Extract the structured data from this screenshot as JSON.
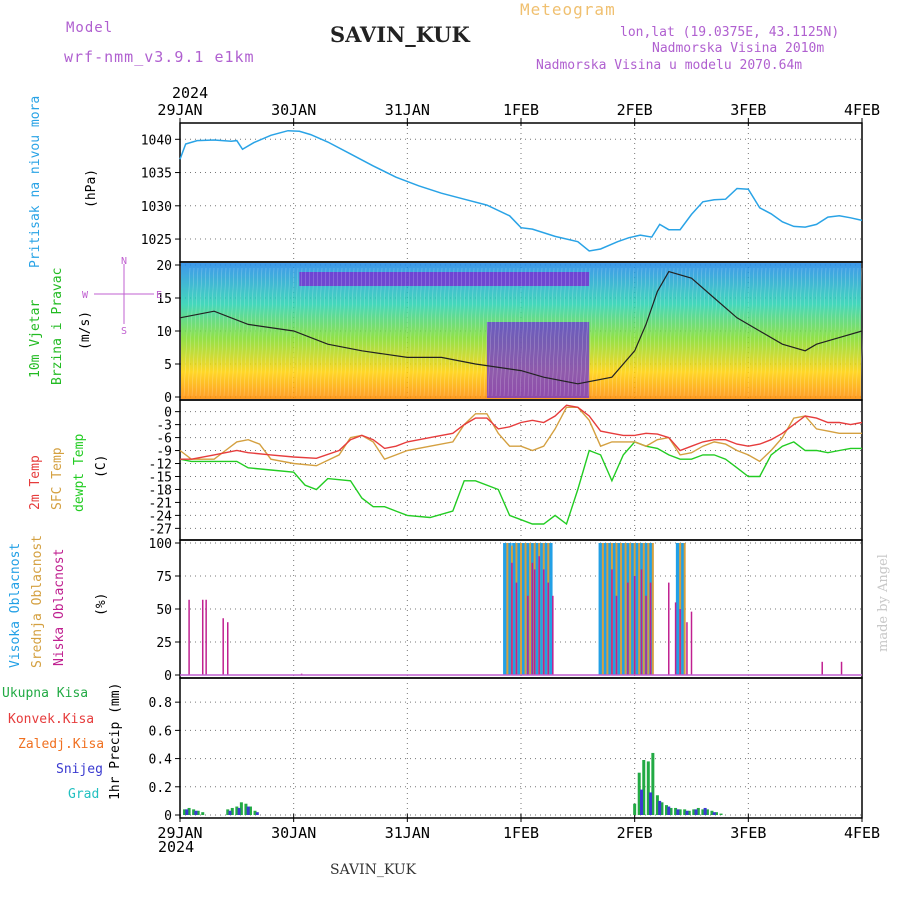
{
  "header": {
    "model_label": "Model",
    "model_name": "wrf-nmm_v3.9.1 e1km",
    "station": "SAVIN_KUK",
    "meteogram": "Meteogram",
    "lonlat": "lon,lat (19.0375E, 43.1125N)",
    "elevation": "Nadmorska Visina 2010m",
    "model_elevation": "Nadmorska Visina u modelu 2070.64m",
    "footer_station": "SAVIN_KUK",
    "credit": "made by Angel"
  },
  "colors": {
    "pressure": "#29a3e6",
    "temp2m": "#e63c3c",
    "sfc": "#d4a040",
    "dewpt": "#22cc22",
    "cloud_high": "#22a0e6",
    "cloud_mid": "#d4a040",
    "cloud_low": "#c02090",
    "precip_total": "#22aa44",
    "precip_snow": "#3a3ad0"
  },
  "chart_data": [
    {
      "type": "line",
      "panel": "pressure",
      "ylabel": [
        "Pritisak na nivou mora",
        "(hPa)"
      ],
      "yticks": [
        1025,
        1030,
        1035,
        1040
      ],
      "ylim": [
        1022,
        1042
      ],
      "xlim": [
        0,
        6
      ],
      "x_top_year": "2024",
      "x_bottom_year": "2024",
      "x_ticks": [
        "29JAN",
        "30JAN",
        "31JAN",
        "1FEB",
        "2FEB",
        "3FEB",
        "4FEB"
      ],
      "series": [
        {
          "x": [
            0,
            0.05,
            0.15,
            0.3,
            0.45,
            0.5,
            0.55,
            0.65,
            0.8,
            0.95,
            1.05,
            1.15,
            1.3,
            1.5,
            1.7,
            1.9,
            2.1,
            2.3,
            2.5,
            2.7,
            2.9,
            3.0,
            3.1,
            3.3,
            3.5,
            3.6,
            3.7,
            3.85,
            3.95,
            4.05,
            4.15,
            4.22,
            4.3,
            4.4,
            4.5,
            4.6,
            4.7,
            4.8,
            4.9,
            5.0,
            5.1,
            5.2,
            5.3,
            5.4,
            5.5,
            5.6,
            5.7,
            5.8,
            5.9,
            6.0
          ],
          "y": [
            1037,
            1039.3,
            1039.8,
            1039.9,
            1039.7,
            1039.8,
            1038.5,
            1039.5,
            1040.6,
            1041.3,
            1041.2,
            1040.7,
            1039.6,
            1037.8,
            1036,
            1034.3,
            1033,
            1031.9,
            1031,
            1030.1,
            1028.5,
            1026.7,
            1026.5,
            1025.4,
            1024.6,
            1023.2,
            1023.5,
            1024.6,
            1025.2,
            1025.6,
            1025.3,
            1027.2,
            1026.4,
            1026.4,
            1028.7,
            1030.6,
            1030.9,
            1031,
            1032.6,
            1032.5,
            1029.7,
            1028.8,
            1027.6,
            1026.9,
            1026.8,
            1027.2,
            1028.3,
            1028.5,
            1028.2,
            1027.8
          ]
        }
      ]
    },
    {
      "type": "line",
      "panel": "wind",
      "ylabel": [
        "10m Vjetar",
        "Brzina i Pravac",
        "(m/s)"
      ],
      "compass": [
        "N",
        "W",
        "E",
        "S"
      ],
      "yticks": [
        0,
        5,
        10,
        15,
        20
      ],
      "ylim": [
        0,
        20
      ],
      "xlim": [
        0,
        6
      ],
      "series": [
        {
          "name": "speed",
          "x": [
            0,
            0.3,
            0.6,
            1.0,
            1.3,
            1.6,
            2.0,
            2.3,
            2.6,
            3.0,
            3.2,
            3.5,
            3.8,
            4.0,
            4.1,
            4.2,
            4.3,
            4.5,
            4.7,
            4.9,
            5.1,
            5.3,
            5.5,
            5.6,
            5.8,
            6.0
          ],
          "y": [
            12,
            13,
            11,
            10,
            8,
            7,
            6,
            6,
            5,
            4,
            3,
            2,
            3,
            7,
            11,
            16,
            19,
            18,
            15,
            12,
            10,
            8,
            7,
            8,
            9,
            10
          ]
        }
      ]
    },
    {
      "type": "line",
      "panel": "temperature",
      "ylabel": [
        "2m Temp",
        "SFC Temp",
        "dewpt Temp",
        "(C)"
      ],
      "yticks": [
        0,
        -3,
        -6,
        -9,
        -12,
        -15,
        -18,
        -21,
        -24,
        -27
      ],
      "ylim": [
        -29,
        2
      ],
      "xlim": [
        0,
        6
      ],
      "series": [
        {
          "name": "2m Temp",
          "x": [
            0,
            0.1,
            0.3,
            0.5,
            0.6,
            0.8,
            1.0,
            1.2,
            1.4,
            1.5,
            1.6,
            1.7,
            1.8,
            1.9,
            2.0,
            2.2,
            2.4,
            2.5,
            2.6,
            2.7,
            2.8,
            2.9,
            3.0,
            3.1,
            3.2,
            3.3,
            3.4,
            3.5,
            3.6,
            3.7,
            3.8,
            3.9,
            4.0,
            4.1,
            4.2,
            4.3,
            4.4,
            4.5,
            4.6,
            4.7,
            4.8,
            4.9,
            5.0,
            5.1,
            5.2,
            5.3,
            5.4,
            5.5,
            5.6,
            5.7,
            5.8,
            5.9,
            6.0
          ],
          "y": [
            -11,
            -11,
            -10,
            -9,
            -9.5,
            -10,
            -10.5,
            -10.8,
            -9,
            -6.5,
            -5.5,
            -6.5,
            -8.5,
            -8,
            -7,
            -6,
            -5,
            -3,
            -1.5,
            -1.5,
            -4,
            -3.5,
            -2.5,
            -2,
            -2.5,
            -1,
            1.5,
            1,
            -1,
            -4.5,
            -5,
            -5.5,
            -5.5,
            -5,
            -5.2,
            -6,
            -9,
            -8,
            -7,
            -6.5,
            -6.5,
            -7.5,
            -8,
            -7.5,
            -6.5,
            -5,
            -3,
            -1,
            -1.5,
            -2.5,
            -2.5,
            -3,
            -2.5
          ]
        },
        {
          "name": "SFC Temp",
          "x": [
            0,
            0.1,
            0.3,
            0.4,
            0.5,
            0.6,
            0.7,
            0.8,
            1.0,
            1.2,
            1.4,
            1.5,
            1.6,
            1.7,
            1.8,
            1.9,
            2.0,
            2.2,
            2.4,
            2.5,
            2.6,
            2.7,
            2.8,
            2.9,
            3.0,
            3.1,
            3.2,
            3.3,
            3.4,
            3.5,
            3.6,
            3.7,
            3.8,
            3.9,
            4.0,
            4.1,
            4.2,
            4.3,
            4.4,
            4.5,
            4.6,
            4.7,
            4.8,
            4.9,
            5.0,
            5.1,
            5.2,
            5.3,
            5.4,
            5.5,
            5.6,
            5.7,
            5.8,
            5.9,
            6.0
          ],
          "y": [
            -9,
            -11,
            -11,
            -9,
            -7,
            -6.5,
            -7.5,
            -11,
            -12,
            -12.5,
            -10,
            -6,
            -5.5,
            -7,
            -11,
            -10,
            -9,
            -8,
            -7,
            -3,
            -0.5,
            -0.5,
            -5,
            -8,
            -8,
            -9,
            -8,
            -4,
            1,
            1,
            -2,
            -8,
            -7,
            -7,
            -7,
            -8,
            -6.5,
            -6,
            -10,
            -9.5,
            -8,
            -7,
            -7.5,
            -9,
            -10,
            -11.5,
            -9,
            -6,
            -1.5,
            -1,
            -4,
            -4.5,
            -5,
            -5,
            -5
          ]
        },
        {
          "name": "dewpt Temp",
          "x": [
            0,
            0.1,
            0.3,
            0.5,
            0.6,
            0.8,
            1.0,
            1.1,
            1.2,
            1.3,
            1.5,
            1.6,
            1.7,
            1.8,
            1.9,
            2.0,
            2.2,
            2.4,
            2.5,
            2.6,
            2.8,
            2.9,
            3.0,
            3.1,
            3.2,
            3.3,
            3.4,
            3.5,
            3.6,
            3.7,
            3.8,
            3.9,
            4.0,
            4.1,
            4.2,
            4.3,
            4.4,
            4.5,
            4.6,
            4.7,
            4.8,
            4.9,
            5.0,
            5.1,
            5.2,
            5.3,
            5.4,
            5.5,
            5.6,
            5.7,
            5.8,
            5.9,
            6.0
          ],
          "y": [
            -11,
            -11.5,
            -11.5,
            -11.5,
            -13,
            -13.5,
            -14,
            -17,
            -18,
            -15.5,
            -16,
            -20,
            -22,
            -22,
            -23,
            -24,
            -24.5,
            -23,
            -16,
            -16,
            -18,
            -24,
            -25,
            -26,
            -26,
            -24,
            -26,
            -18,
            -9,
            -10,
            -16,
            -10,
            -7,
            -8,
            -8.5,
            -10,
            -11,
            -11,
            -10,
            -10,
            -11,
            -13,
            -15,
            -15,
            -10,
            -8,
            -7,
            -9,
            -9,
            -9.5,
            -9,
            -8.5,
            -8.5
          ]
        }
      ]
    },
    {
      "type": "bar",
      "panel": "clouds",
      "ylabel": [
        "Visoka Oblacnost",
        "Srednja Oblacnost",
        "Niska Oblacnost",
        "(%)"
      ],
      "yticks": [
        0,
        25,
        50,
        75,
        100
      ],
      "ylim": [
        0,
        100
      ],
      "xlim": [
        0,
        6
      ],
      "series": [
        {
          "name": "Niska Oblacnost",
          "x": [
            0.08,
            0.2,
            0.23,
            0.38,
            0.42,
            1.07,
            5.65,
            5.82
          ],
          "y": [
            57,
            57,
            57,
            43,
            40,
            1,
            10,
            10
          ]
        },
        {
          "name": "Visoka Oblacnost",
          "x": [
            2.86,
            2.9,
            2.94,
            2.98,
            3.02,
            3.06,
            3.1,
            3.14,
            3.18,
            3.22,
            3.26,
            3.7,
            3.74,
            3.78,
            3.82,
            3.86,
            3.9,
            3.94,
            3.98,
            4.02,
            4.06,
            4.1,
            4.14,
            4.38,
            4.42
          ],
          "y": [
            100,
            100,
            100,
            100,
            100,
            100,
            100,
            100,
            100,
            100,
            100,
            100,
            100,
            100,
            100,
            100,
            100,
            100,
            100,
            100,
            100,
            100,
            100,
            100,
            100
          ]
        },
        {
          "name": "Srednja Oblacnost",
          "x": [
            2.88,
            2.92,
            2.96,
            3.0,
            3.04,
            3.08,
            3.12,
            3.16,
            3.2,
            3.24,
            3.72,
            3.76,
            3.8,
            3.84,
            3.88,
            3.92,
            3.96,
            4.0,
            4.04,
            4.08,
            4.12,
            4.16,
            4.4,
            4.44
          ],
          "y": [
            100,
            98,
            100,
            100,
            100,
            100,
            100,
            100,
            100,
            100,
            100,
            100,
            100,
            100,
            100,
            100,
            100,
            100,
            100,
            100,
            100,
            100,
            100,
            100
          ]
        },
        {
          "name": "Niska Oblacnost",
          "x": [
            2.92,
            2.96,
            3.06,
            3.1,
            3.12,
            3.16,
            3.2,
            3.24,
            3.28,
            3.8,
            3.84,
            3.94,
            4.0,
            4.06,
            4.1,
            4.14,
            4.3,
            4.36,
            4.4,
            4.46,
            4.5
          ],
          "y": [
            85,
            70,
            60,
            85,
            80,
            90,
            80,
            70,
            60,
            80,
            60,
            70,
            75,
            80,
            60,
            70,
            70,
            55,
            50,
            40,
            48
          ]
        }
      ]
    },
    {
      "type": "bar",
      "panel": "precip",
      "ylabel": [
        "1hr Precip (mm)"
      ],
      "legend": [
        "Ukupna Kisa",
        "Konvek.Kisa",
        "Zaledj.Kisa",
        "Snijeg",
        "Grad"
      ],
      "legend_colors": [
        "#22aa44",
        "#e63c3c",
        "#f07020",
        "#3a3ad0",
        "#22c0c0"
      ],
      "yticks": [
        0,
        0.2,
        0.4,
        0.6,
        0.8
      ],
      "ylim": [
        0,
        0.95
      ],
      "xlim": [
        0,
        6
      ],
      "series": [
        {
          "name": "Ukupna Kisa",
          "x": [
            0.04,
            0.08,
            0.12,
            0.16,
            0.2,
            0.42,
            0.46,
            0.5,
            0.54,
            0.58,
            0.62,
            0.66,
            4.0,
            4.04,
            4.08,
            4.12,
            4.16,
            4.2,
            4.24,
            4.28,
            4.32,
            4.36,
            4.4,
            4.44,
            4.48,
            4.52,
            4.56,
            4.6,
            4.64,
            4.68,
            4.72,
            4.76
          ],
          "y": [
            0.04,
            0.05,
            0.04,
            0.03,
            0.02,
            0.04,
            0.05,
            0.06,
            0.09,
            0.08,
            0.06,
            0.03,
            0.08,
            0.3,
            0.39,
            0.38,
            0.44,
            0.14,
            0.09,
            0.07,
            0.05,
            0.05,
            0.04,
            0.04,
            0.03,
            0.04,
            0.05,
            0.04,
            0.04,
            0.03,
            0.02,
            0.01
          ]
        },
        {
          "name": "Snijeg",
          "x": [
            0.06,
            0.14,
            0.44,
            0.52,
            0.6,
            0.68,
            4.06,
            4.14,
            4.22,
            4.3,
            4.38,
            4.46,
            4.54,
            4.62,
            4.7
          ],
          "y": [
            0.04,
            0.03,
            0.03,
            0.05,
            0.06,
            0.02,
            0.18,
            0.16,
            0.1,
            0.06,
            0.04,
            0.03,
            0.04,
            0.05,
            0.02
          ]
        }
      ]
    }
  ]
}
